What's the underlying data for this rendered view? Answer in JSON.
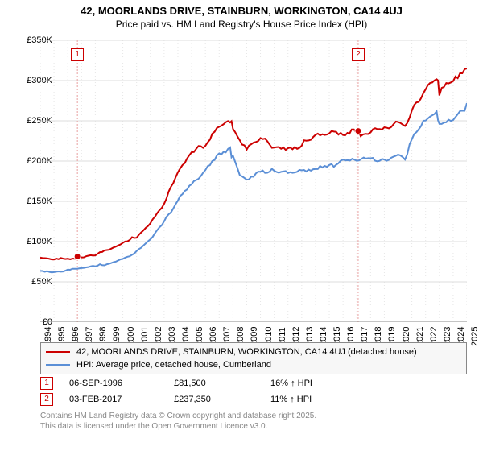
{
  "title": {
    "line1": "42, MOORLANDS DRIVE, STAINBURN, WORKINGTON, CA14 4UJ",
    "line2": "Price paid vs. HM Land Registry's House Price Index (HPI)"
  },
  "chart": {
    "type": "line",
    "background_color": "#ffffff",
    "grid_color": "#dddddd",
    "dotted_grid_color": "#e6e6e6",
    "x_years": [
      1994,
      1995,
      1996,
      1997,
      1998,
      1999,
      2000,
      2001,
      2002,
      2003,
      2004,
      2005,
      2006,
      2007,
      2008,
      2009,
      2010,
      2011,
      2012,
      2013,
      2014,
      2015,
      2016,
      2017,
      2018,
      2019,
      2020,
      2021,
      2022,
      2023,
      2024,
      2025
    ],
    "ylim": [
      0,
      350000
    ],
    "ytick_step": 50000,
    "ytick_labels": [
      "£0",
      "£50K",
      "£100K",
      "£150K",
      "£200K",
      "£250K",
      "£300K",
      "£350K"
    ],
    "series": [
      {
        "name": "property",
        "label": "42, MOORLANDS DRIVE, STAINBURN, WORKINGTON, CA14 4UJ (detached house)",
        "color": "#cc0000",
        "width": 2,
        "data": [
          [
            1994,
            80000
          ],
          [
            1995,
            78000
          ],
          [
            1996,
            80000
          ],
          [
            1996.7,
            81500
          ],
          [
            1997,
            82000
          ],
          [
            1998,
            85000
          ],
          [
            1999,
            90000
          ],
          [
            2000,
            98000
          ],
          [
            2001,
            108000
          ],
          [
            2002,
            125000
          ],
          [
            2003,
            150000
          ],
          [
            2004,
            185000
          ],
          [
            2005,
            210000
          ],
          [
            2006,
            225000
          ],
          [
            2007,
            248000
          ],
          [
            2007.8,
            255000
          ],
          [
            2008,
            245000
          ],
          [
            2008.5,
            225000
          ],
          [
            2009,
            215000
          ],
          [
            2010,
            228000
          ],
          [
            2011,
            222000
          ],
          [
            2012,
            220000
          ],
          [
            2013,
            222000
          ],
          [
            2014,
            232000
          ],
          [
            2015,
            235000
          ],
          [
            2016,
            238000
          ],
          [
            2017.1,
            237350
          ],
          [
            2018,
            238000
          ],
          [
            2019,
            240000
          ],
          [
            2020,
            248000
          ],
          [
            2020.5,
            243000
          ],
          [
            2021,
            268000
          ],
          [
            2022,
            295000
          ],
          [
            2022.8,
            308000
          ],
          [
            2023,
            290000
          ],
          [
            2024,
            300000
          ],
          [
            2025,
            315000
          ]
        ]
      },
      {
        "name": "hpi",
        "label": "HPI: Average price, detached house, Cumberland",
        "color": "#5b8fd6",
        "width": 2,
        "data": [
          [
            1994,
            65000
          ],
          [
            1995,
            63000
          ],
          [
            1996,
            65000
          ],
          [
            1997,
            67000
          ],
          [
            1998,
            70000
          ],
          [
            1999,
            74000
          ],
          [
            2000,
            80000
          ],
          [
            2001,
            88000
          ],
          [
            2002,
            102000
          ],
          [
            2003,
            125000
          ],
          [
            2004,
            155000
          ],
          [
            2005,
            175000
          ],
          [
            2006,
            190000
          ],
          [
            2007,
            208000
          ],
          [
            2007.8,
            215000
          ],
          [
            2008,
            205000
          ],
          [
            2008.5,
            188000
          ],
          [
            2009,
            180000
          ],
          [
            2010,
            192000
          ],
          [
            2011,
            188000
          ],
          [
            2012,
            186000
          ],
          [
            2013,
            188000
          ],
          [
            2014,
            195000
          ],
          [
            2015,
            198000
          ],
          [
            2016,
            200000
          ],
          [
            2017,
            202000
          ],
          [
            2018,
            203000
          ],
          [
            2019,
            205000
          ],
          [
            2020,
            212000
          ],
          [
            2020.5,
            208000
          ],
          [
            2021,
            228000
          ],
          [
            2022,
            252000
          ],
          [
            2022.8,
            262000
          ],
          [
            2023,
            248000
          ],
          [
            2024,
            258000
          ],
          [
            2025,
            272000
          ]
        ]
      }
    ],
    "sale_markers": [
      {
        "num": "1",
        "x": 1996.7,
        "y": 81500,
        "box_top": 60
      },
      {
        "num": "2",
        "x": 2017.1,
        "y": 237350,
        "box_top": 60
      }
    ],
    "marker_vline_color": "#e8a0a0"
  },
  "legend": {
    "rows": [
      {
        "color": "#cc0000",
        "label": "42, MOORLANDS DRIVE, STAINBURN, WORKINGTON, CA14 4UJ (detached house)"
      },
      {
        "color": "#5b8fd6",
        "label": "HPI: Average price, detached house, Cumberland"
      }
    ]
  },
  "marker_table": [
    {
      "num": "1",
      "date": "06-SEP-1996",
      "price": "£81,500",
      "pct": "16% ↑ HPI"
    },
    {
      "num": "2",
      "date": "03-FEB-2017",
      "price": "£237,350",
      "pct": "11% ↑ HPI"
    }
  ],
  "footer": {
    "line1": "Contains HM Land Registry data © Crown copyright and database right 2025.",
    "line2": "This data is licensed under the Open Government Licence v3.0."
  }
}
